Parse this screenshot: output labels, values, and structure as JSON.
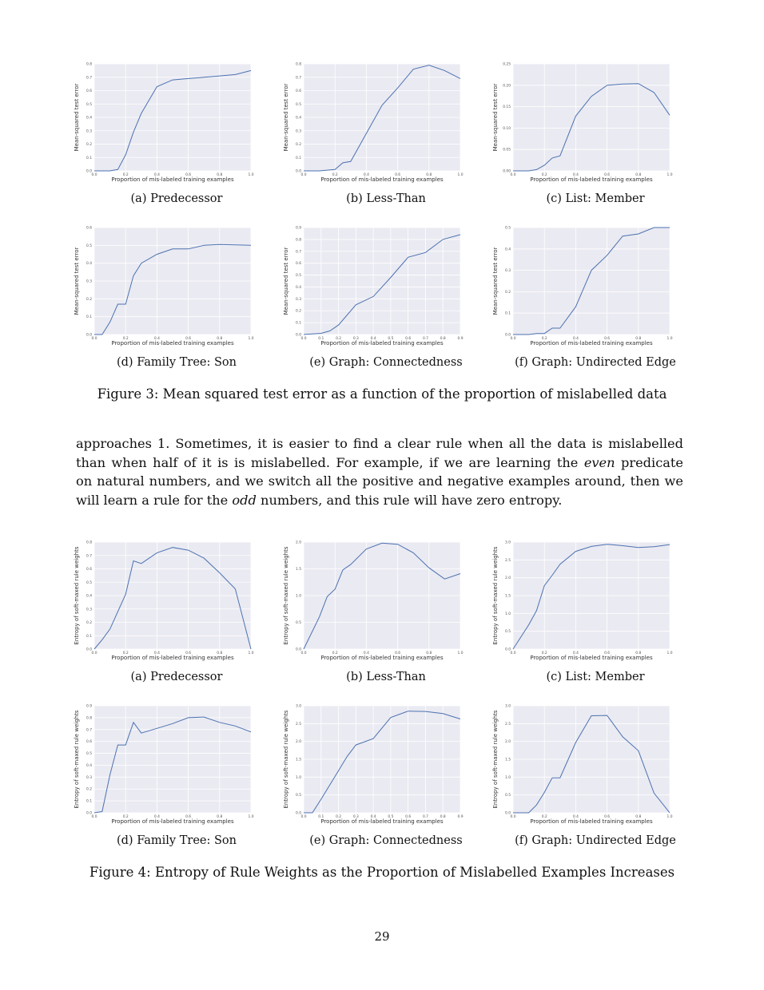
{
  "figure3": {
    "caption": "Figure 3: Mean squared test error as a function of the proportion of mislabelled data",
    "subfigures": [
      {
        "caption": "(a) Predecessor"
      },
      {
        "caption": "(b) Less-Than"
      },
      {
        "caption": "(c) List: Member"
      },
      {
        "caption": "(d) Family Tree: Son"
      },
      {
        "caption": "(e) Graph: Connectedness"
      },
      {
        "caption": "(f) Graph: Undirected Edge"
      }
    ]
  },
  "figure4": {
    "caption": "Figure 4: Entropy of Rule Weights as the Proportion of Mislabelled Examples Increases",
    "subfigures": [
      {
        "caption": "(a) Predecessor"
      },
      {
        "caption": "(b) Less-Than"
      },
      {
        "caption": "(c) List: Member"
      },
      {
        "caption": "(d) Family Tree: Son"
      },
      {
        "caption": "(e) Graph: Connectedness"
      },
      {
        "caption": "(f) Graph: Undirected Edge"
      }
    ]
  },
  "paragraph": {
    "lines": [
      [
        "approaches 1.  Sometimes, it is easier to find a clear rule when all the data is mislabelled"
      ],
      [
        "than when half of it is is mislabelled.  For example, if we are learning the ",
        {
          "em": "even"
        },
        " predicate"
      ],
      [
        "on natural numbers, and we switch all the positive and negative examples around, then we"
      ],
      [
        "will learn a rule for the ",
        {
          "em": "odd"
        },
        " numbers, and this rule will have zero entropy."
      ]
    ]
  },
  "page_number": "29",
  "colors": {
    "line": "#4c72b0",
    "plot_bg": "#eaeaf2",
    "grid": "#ffffff"
  },
  "chart_data": [
    {
      "type": "line",
      "figure": "3a",
      "title": "",
      "xlabel": "Proportion of mis-labeled training examples",
      "ylabel": "Mean-squared test error",
      "xlim": [
        0,
        1.0
      ],
      "ylim": [
        0,
        0.8
      ],
      "xticks": [
        "0.0",
        "0.2",
        "0.4",
        "0.6",
        "0.8",
        "1.0"
      ],
      "yticks": [
        "0.0",
        "0.1",
        "0.2",
        "0.3",
        "0.4",
        "0.5",
        "0.6",
        "0.7",
        "0.8"
      ],
      "x": [
        0,
        0.1,
        0.15,
        0.2,
        0.25,
        0.3,
        0.4,
        0.5,
        0.6,
        0.7,
        0.8,
        0.9,
        1.0
      ],
      "y": [
        0,
        0,
        0.01,
        0.12,
        0.29,
        0.43,
        0.63,
        0.68,
        0.69,
        0.7,
        0.71,
        0.72,
        0.75
      ]
    },
    {
      "type": "line",
      "figure": "3b",
      "title": "",
      "xlabel": "Proportion of mis-labeled training examples",
      "ylabel": "Mean-squared test error",
      "xlim": [
        0,
        1.0
      ],
      "ylim": [
        0,
        0.8
      ],
      "xticks": [
        "0.0",
        "0.2",
        "0.4",
        "0.6",
        "0.8",
        "1.0"
      ],
      "yticks": [
        "0.0",
        "0.1",
        "0.2",
        "0.3",
        "0.4",
        "0.5",
        "0.6",
        "0.7",
        "0.8"
      ],
      "x": [
        0,
        0.1,
        0.2,
        0.25,
        0.3,
        0.4,
        0.5,
        0.6,
        0.7,
        0.8,
        0.9,
        1.0
      ],
      "y": [
        0,
        0,
        0.01,
        0.06,
        0.07,
        0.28,
        0.49,
        0.62,
        0.76,
        0.79,
        0.75,
        0.69
      ]
    },
    {
      "type": "line",
      "figure": "3c",
      "title": "",
      "xlabel": "Proportion of mis-labeled training examples",
      "ylabel": "Mean-squared test error",
      "xlim": [
        0,
        1.0
      ],
      "ylim": [
        0,
        0.25
      ],
      "xticks": [
        "0.0",
        "0.2",
        "0.4",
        "0.6",
        "0.8",
        "1.0"
      ],
      "yticks": [
        "0.00",
        "0.05",
        "0.10",
        "0.15",
        "0.20",
        "0.25"
      ],
      "x": [
        0,
        0.1,
        0.15,
        0.2,
        0.25,
        0.3,
        0.4,
        0.5,
        0.6,
        0.7,
        0.8,
        0.9,
        1.0
      ],
      "y": [
        0,
        0,
        0.003,
        0.013,
        0.03,
        0.035,
        0.128,
        0.174,
        0.2,
        0.203,
        0.204,
        0.183,
        0.13
      ]
    },
    {
      "type": "line",
      "figure": "3d",
      "title": "",
      "xlabel": "Proportion of mis-labeled training examples",
      "ylabel": "Mean-squared test error",
      "xlim": [
        0,
        1.0
      ],
      "ylim": [
        0,
        0.6
      ],
      "xticks": [
        "0.0",
        "0.2",
        "0.4",
        "0.6",
        "0.8",
        "1.0"
      ],
      "yticks": [
        "0.0",
        "0.1",
        "0.2",
        "0.3",
        "0.4",
        "0.5",
        "0.6"
      ],
      "x": [
        0,
        0.05,
        0.1,
        0.15,
        0.2,
        0.25,
        0.3,
        0.4,
        0.5,
        0.6,
        0.7,
        0.8,
        0.9,
        1.0
      ],
      "y": [
        0,
        0,
        0.07,
        0.17,
        0.17,
        0.33,
        0.4,
        0.45,
        0.48,
        0.48,
        0.5,
        0.505,
        0.503,
        0.5
      ]
    },
    {
      "type": "line",
      "figure": "3e",
      "title": "",
      "xlabel": "Proportion of mis-labeled training examples",
      "ylabel": "Mean-squared test error",
      "xlim": [
        0,
        0.9
      ],
      "ylim": [
        0,
        0.9
      ],
      "xticks": [
        "0.0",
        "0.1",
        "0.2",
        "0.3",
        "0.4",
        "0.5",
        "0.6",
        "0.7",
        "0.8",
        "0.9"
      ],
      "yticks": [
        "0.0",
        "0.1",
        "0.2",
        "0.3",
        "0.4",
        "0.5",
        "0.6",
        "0.7",
        "0.8",
        "0.9"
      ],
      "x": [
        0,
        0.1,
        0.15,
        0.2,
        0.3,
        0.4,
        0.5,
        0.6,
        0.7,
        0.8,
        0.9
      ],
      "y": [
        0,
        0.01,
        0.03,
        0.08,
        0.25,
        0.32,
        0.48,
        0.65,
        0.69,
        0.8,
        0.84
      ]
    },
    {
      "type": "line",
      "figure": "3f",
      "title": "",
      "xlabel": "Proportion of mis-labeled training examples",
      "ylabel": "Mean-squared test error",
      "xlim": [
        0,
        1.0
      ],
      "ylim": [
        0,
        0.5
      ],
      "xticks": [
        "0.0",
        "0.2",
        "0.4",
        "0.6",
        "0.8",
        "1.0"
      ],
      "yticks": [
        "0.0",
        "0.1",
        "0.2",
        "0.3",
        "0.4",
        "0.5"
      ],
      "x": [
        0,
        0.1,
        0.15,
        0.2,
        0.25,
        0.3,
        0.4,
        0.5,
        0.6,
        0.7,
        0.8,
        0.9,
        1.0
      ],
      "y": [
        0,
        0,
        0.005,
        0.005,
        0.03,
        0.03,
        0.13,
        0.3,
        0.37,
        0.46,
        0.47,
        0.5,
        0.5
      ]
    },
    {
      "type": "line",
      "figure": "4a",
      "title": "",
      "xlabel": "Proportion of mis-labeled training examples",
      "ylabel": "Entropy of soft-maxed rule weights",
      "xlim": [
        0,
        1.0
      ],
      "ylim": [
        0,
        0.8
      ],
      "xticks": [
        "0.0",
        "0.2",
        "0.4",
        "0.6",
        "0.8",
        "1.0"
      ],
      "yticks": [
        "0.0",
        "0.1",
        "0.2",
        "0.3",
        "0.4",
        "0.5",
        "0.6",
        "0.7",
        "0.8"
      ],
      "x": [
        0,
        0.05,
        0.1,
        0.2,
        0.25,
        0.3,
        0.4,
        0.5,
        0.6,
        0.7,
        0.8,
        0.9,
        1.0
      ],
      "y": [
        0,
        0.07,
        0.15,
        0.41,
        0.66,
        0.64,
        0.72,
        0.76,
        0.74,
        0.68,
        0.57,
        0.45,
        0
      ]
    },
    {
      "type": "line",
      "figure": "4b",
      "title": "",
      "xlabel": "Proportion of mis-labeled training examples",
      "ylabel": "Entropy of soft-maxed rule weights",
      "xlim": [
        0,
        1.0
      ],
      "ylim": [
        0,
        2.0
      ],
      "xticks": [
        "0.0",
        "0.2",
        "0.4",
        "0.6",
        "0.8",
        "1.0"
      ],
      "yticks": [
        "0.0",
        "0.5",
        "1.0",
        "1.5",
        "2.0"
      ],
      "x": [
        0,
        0.1,
        0.15,
        0.2,
        0.25,
        0.3,
        0.4,
        0.5,
        0.6,
        0.7,
        0.8,
        0.9,
        1.0
      ],
      "y": [
        0,
        0.6,
        0.98,
        1.12,
        1.48,
        1.58,
        1.87,
        1.98,
        1.96,
        1.8,
        1.52,
        1.31,
        1.41
      ]
    },
    {
      "type": "line",
      "figure": "4c",
      "title": "",
      "xlabel": "Proportion of mis-labeled training examples",
      "ylabel": "Entropy of soft-maxed rule weights",
      "xlim": [
        0,
        1.0
      ],
      "ylim": [
        0,
        3.0
      ],
      "xticks": [
        "0.0",
        "0.2",
        "0.4",
        "0.6",
        "0.8",
        "1.0"
      ],
      "yticks": [
        "0.0",
        "0.5",
        "1.0",
        "1.5",
        "2.0",
        "2.5",
        "3.0"
      ],
      "x": [
        0,
        0.1,
        0.15,
        0.2,
        0.25,
        0.3,
        0.4,
        0.5,
        0.6,
        0.7,
        0.8,
        0.9,
        1.0
      ],
      "y": [
        0,
        0.68,
        1.08,
        1.78,
        2.07,
        2.38,
        2.74,
        2.88,
        2.94,
        2.9,
        2.85,
        2.87,
        2.93
      ]
    },
    {
      "type": "line",
      "figure": "4d",
      "title": "",
      "xlabel": "Proportion of mis-labeled training examples",
      "ylabel": "Entropy of soft-maxed rule weights",
      "xlim": [
        0,
        1.0
      ],
      "ylim": [
        0,
        0.9
      ],
      "xticks": [
        "0.0",
        "0.2",
        "0.4",
        "0.6",
        "0.8",
        "1.0"
      ],
      "yticks": [
        "0.0",
        "0.1",
        "0.2",
        "0.3",
        "0.4",
        "0.5",
        "0.6",
        "0.7",
        "0.8",
        "0.9"
      ],
      "x": [
        0,
        0.05,
        0.1,
        0.15,
        0.2,
        0.25,
        0.3,
        0.4,
        0.5,
        0.6,
        0.7,
        0.8,
        0.9,
        1.0
      ],
      "y": [
        0,
        0.01,
        0.32,
        0.57,
        0.57,
        0.76,
        0.67,
        0.71,
        0.75,
        0.8,
        0.805,
        0.76,
        0.73,
        0.68
      ]
    },
    {
      "type": "line",
      "figure": "4e",
      "title": "",
      "xlabel": "Proportion of mis-labeled training examples",
      "ylabel": "Entropy of soft-maxed rule weights",
      "xlim": [
        0,
        0.9
      ],
      "ylim": [
        0,
        3.0
      ],
      "xticks": [
        "0.0",
        "0.1",
        "0.2",
        "0.3",
        "0.4",
        "0.5",
        "0.6",
        "0.7",
        "0.8",
        "0.9"
      ],
      "yticks": [
        "0.0",
        "0.5",
        "1.0",
        "1.5",
        "2.0",
        "2.5",
        "3.0"
      ],
      "x": [
        0,
        0.05,
        0.1,
        0.2,
        0.25,
        0.3,
        0.4,
        0.5,
        0.6,
        0.7,
        0.8,
        0.9
      ],
      "y": [
        0,
        0,
        0.38,
        1.18,
        1.58,
        1.9,
        2.08,
        2.67,
        2.85,
        2.84,
        2.78,
        2.63
      ]
    },
    {
      "type": "line",
      "figure": "4f",
      "title": "",
      "xlabel": "Proportion of mis-labeled training examples",
      "ylabel": "Entropy of soft-maxed rule weights",
      "xlim": [
        0,
        1.0
      ],
      "ylim": [
        0,
        3.0
      ],
      "xticks": [
        "0.0",
        "0.2",
        "0.4",
        "0.6",
        "0.8",
        "1.0"
      ],
      "yticks": [
        "0.0",
        "0.5",
        "1.0",
        "1.5",
        "2.0",
        "2.5",
        "3.0"
      ],
      "x": [
        0,
        0.1,
        0.15,
        0.2,
        0.25,
        0.3,
        0.4,
        0.5,
        0.6,
        0.7,
        0.8,
        0.9,
        1.0
      ],
      "y": [
        0,
        0,
        0.22,
        0.57,
        0.98,
        0.98,
        1.97,
        2.72,
        2.73,
        2.13,
        1.74,
        0.55,
        0
      ]
    }
  ]
}
